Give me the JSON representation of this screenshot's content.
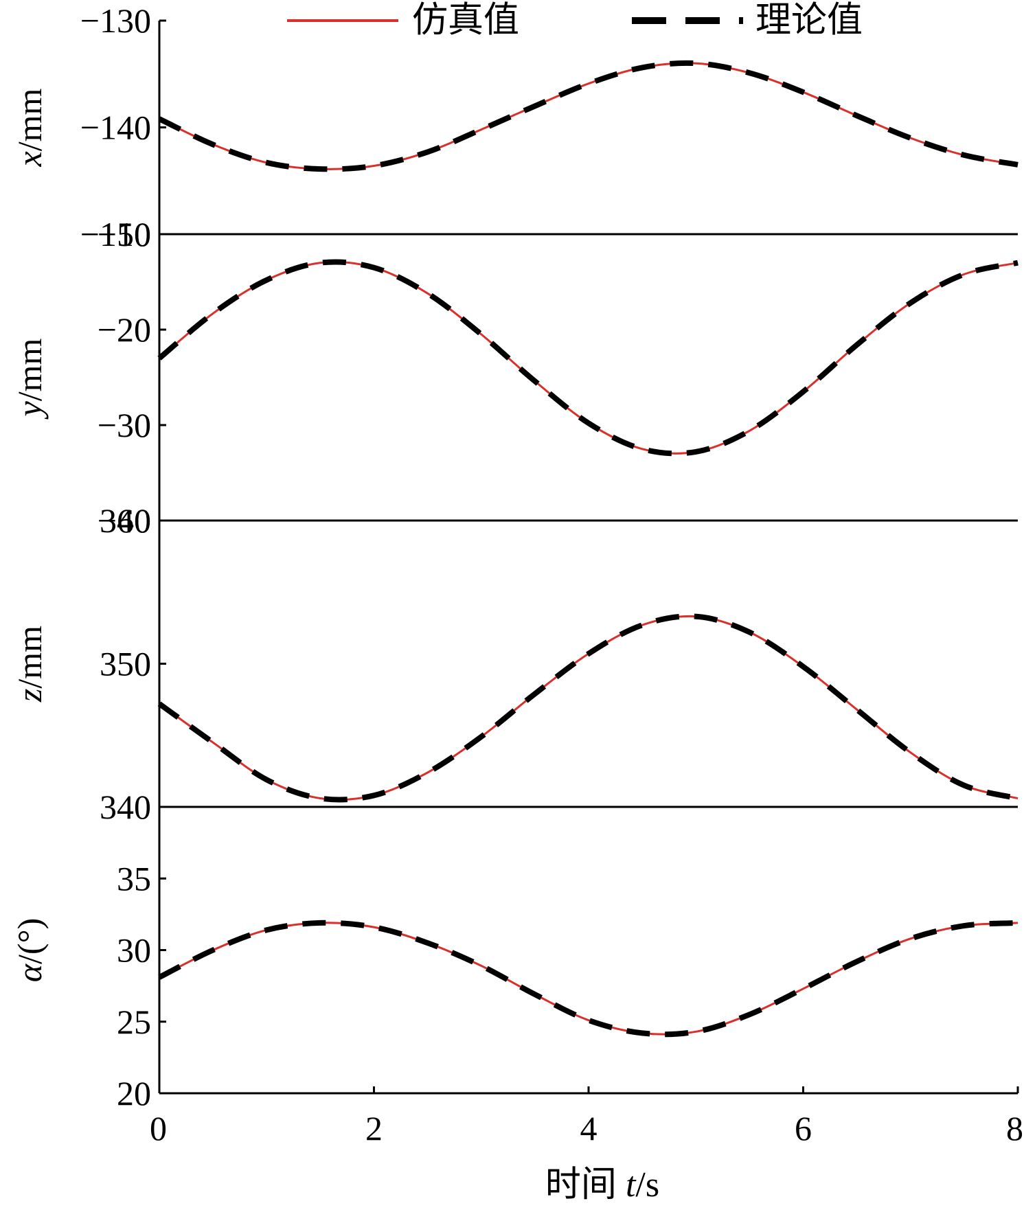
{
  "legend": [
    {
      "label": "仿真值",
      "color": "#d9302c",
      "style": "solid"
    },
    {
      "label": "理论值",
      "color": "#000000",
      "style": "dashed"
    }
  ],
  "xaxis": {
    "label_prefix": "时间 ",
    "label_var": "t",
    "label_unit": "/s",
    "ticks": [
      "0",
      "2",
      "4",
      "6",
      "8"
    ]
  },
  "chart_data": {
    "type": "line",
    "x": [
      0.0,
      0.5,
      1.0,
      1.5,
      2.0,
      2.5,
      3.0,
      3.5,
      4.0,
      4.5,
      5.0,
      5.5,
      6.0,
      6.5,
      7.0,
      7.5,
      8.0
    ],
    "xlim": [
      0,
      8
    ],
    "xticks": [
      0,
      2,
      4,
      6,
      8
    ],
    "xlabel": "时间 t/s",
    "legend_position": "top",
    "grid": false,
    "panels": [
      {
        "ylabel_var": "x",
        "ylabel_unit": "/mm",
        "ylabel": "x/mm",
        "ylim": [
          -150,
          -130
        ],
        "ytick_labels": [
          "−130",
          "−140",
          "−150"
        ],
        "yticks": [
          -130,
          -140,
          -150
        ],
        "series": [
          {
            "name": "仿真值",
            "values": [
              -139.2,
              -141.6,
              -143.3,
              -143.9,
              -143.6,
              -142.3,
              -140.2,
              -138.0,
              -135.9,
              -134.4,
              -134.0,
              -134.9,
              -136.7,
              -138.9,
              -141.0,
              -142.6,
              -143.5
            ]
          },
          {
            "name": "理论值",
            "values": [
              -139.2,
              -141.6,
              -143.3,
              -143.9,
              -143.6,
              -142.3,
              -140.2,
              -138.0,
              -135.9,
              -134.4,
              -134.0,
              -134.9,
              -136.7,
              -138.9,
              -141.0,
              -142.6,
              -143.5
            ]
          }
        ]
      },
      {
        "ylabel_var": "y",
        "ylabel_unit": "/mm",
        "ylabel": "y/mm",
        "ylim": [
          -40,
          -10
        ],
        "ytick_labels": [
          "−10",
          "−20",
          "−30",
          "−40"
        ],
        "yticks": [
          -10,
          -20,
          -30,
          -40
        ],
        "series": [
          {
            "name": "仿真值",
            "values": [
              -23.0,
              -18.3,
              -14.8,
              -13.0,
              -13.5,
              -16.2,
              -20.5,
              -25.4,
              -29.8,
              -32.5,
              -32.8,
              -30.6,
              -26.5,
              -21.6,
              -17.2,
              -14.2,
              -13.0
            ]
          },
          {
            "name": "理论值",
            "values": [
              -23.0,
              -18.3,
              -14.8,
              -13.0,
              -13.5,
              -16.2,
              -20.5,
              -25.4,
              -29.8,
              -32.5,
              -32.8,
              -30.6,
              -26.5,
              -21.6,
              -17.2,
              -14.2,
              -13.0
            ]
          }
        ]
      },
      {
        "ylabel_var": "z",
        "ylabel_unit": "/mm",
        "ylabel": "z/mm",
        "ylim": [
          340,
          360
        ],
        "ytick_labels": [
          "360",
          "350",
          "340"
        ],
        "yticks": [
          360,
          350,
          340
        ],
        "series": [
          {
            "name": "仿真值",
            "values": [
              347.2,
              344.5,
              341.9,
              340.6,
              340.8,
              342.4,
              344.9,
              347.9,
              350.7,
              352.7,
              353.3,
              352.2,
              349.8,
              346.8,
              343.8,
              341.5,
              340.6
            ]
          },
          {
            "name": "理论值",
            "values": [
              347.2,
              344.5,
              341.9,
              340.6,
              340.8,
              342.4,
              344.9,
              347.9,
              350.7,
              352.7,
              353.3,
              352.2,
              349.8,
              346.8,
              343.8,
              341.5,
              340.6
            ]
          }
        ]
      },
      {
        "ylabel_var": "α",
        "ylabel_unit": "/(°)",
        "ylabel": "α/(°)",
        "ylim": [
          20,
          40
        ],
        "ytick_labels": [
          "35",
          "30",
          "25",
          "20"
        ],
        "yticks": [
          35,
          30,
          25,
          20
        ],
        "series": [
          {
            "name": "仿真值",
            "values": [
              28.1,
              30.0,
              31.4,
              31.9,
              31.6,
              30.5,
              28.9,
              26.9,
              25.1,
              24.2,
              24.3,
              25.5,
              27.3,
              29.2,
              30.8,
              31.7,
              31.9
            ]
          },
          {
            "name": "理论值",
            "values": [
              28.1,
              30.0,
              31.4,
              31.9,
              31.6,
              30.5,
              28.9,
              26.9,
              25.1,
              24.2,
              24.3,
              25.5,
              27.3,
              29.2,
              30.8,
              31.7,
              31.9
            ]
          }
        ]
      }
    ]
  }
}
